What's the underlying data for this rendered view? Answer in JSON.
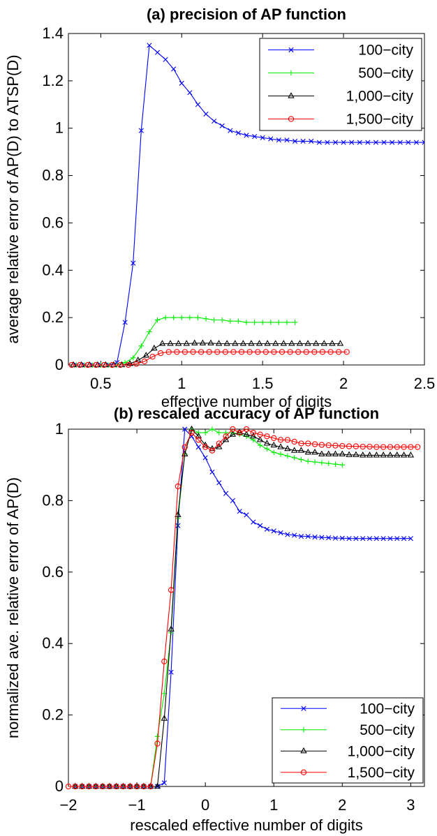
{
  "chart_data": [
    {
      "type": "line",
      "title": "(a) precision of AP function",
      "xlabel": "effective number of digits",
      "ylabel": "average relative error of AP(D) to ATSP(D)",
      "xlim": [
        0.3,
        2.5
      ],
      "ylim": [
        0,
        1.4
      ],
      "xticks": [
        0.5,
        1,
        1.5,
        2,
        2.5
      ],
      "xtick_labels": [
        "0.5",
        "1",
        "1.5",
        "2",
        "2.5"
      ],
      "yticks": [
        0,
        0.2,
        0.4,
        0.6,
        0.8,
        1,
        1.2,
        1.4
      ],
      "ytick_labels": [
        "0",
        "0.2",
        "0.4",
        "0.6",
        "0.8",
        "1",
        "1.2",
        "1.4"
      ],
      "grid": false,
      "legend_position": "top-right",
      "series": [
        {
          "name": "100−city",
          "color": "#0000ff",
          "marker": "x",
          "x": [
            0.35,
            0.4,
            0.45,
            0.5,
            0.55,
            0.6,
            0.65,
            0.7,
            0.75,
            0.8,
            0.85,
            0.9,
            0.95,
            1.0,
            1.05,
            1.1,
            1.15,
            1.2,
            1.25,
            1.3,
            1.35,
            1.4,
            1.45,
            1.5,
            1.55,
            1.6,
            1.65,
            1.7,
            1.75,
            1.8,
            1.85,
            1.9,
            1.95,
            2.0,
            2.05,
            2.1,
            2.15,
            2.2,
            2.25,
            2.3,
            2.35,
            2.4,
            2.45,
            2.5
          ],
          "y": [
            0,
            0,
            0,
            0,
            0,
            0.01,
            0.18,
            0.43,
            0.99,
            1.35,
            1.32,
            1.29,
            1.25,
            1.19,
            1.15,
            1.1,
            1.06,
            1.03,
            1.01,
            0.99,
            0.98,
            0.97,
            0.965,
            0.96,
            0.955,
            0.95,
            0.95,
            0.945,
            0.945,
            0.945,
            0.94,
            0.94,
            0.94,
            0.94,
            0.94,
            0.94,
            0.94,
            0.94,
            0.94,
            0.94,
            0.94,
            0.94,
            0.94,
            0.94
          ]
        },
        {
          "name": "500−city",
          "color": "#00ee00",
          "marker": "+",
          "x": [
            0.35,
            0.4,
            0.45,
            0.5,
            0.55,
            0.6,
            0.65,
            0.7,
            0.75,
            0.8,
            0.85,
            0.9,
            0.95,
            1.0,
            1.05,
            1.1,
            1.15,
            1.2,
            1.25,
            1.3,
            1.35,
            1.4,
            1.45,
            1.5,
            1.55,
            1.6,
            1.65,
            1.7
          ],
          "y": [
            0,
            0,
            0,
            0,
            0,
            0,
            0.01,
            0.03,
            0.08,
            0.14,
            0.19,
            0.2,
            0.2,
            0.2,
            0.2,
            0.2,
            0.195,
            0.19,
            0.19,
            0.185,
            0.185,
            0.18,
            0.18,
            0.18,
            0.18,
            0.18,
            0.18,
            0.18
          ]
        },
        {
          "name": "1,000−city",
          "color": "#000000",
          "marker": "triangle",
          "x": [
            0.33,
            0.38,
            0.43,
            0.48,
            0.53,
            0.58,
            0.63,
            0.68,
            0.73,
            0.78,
            0.83,
            0.88,
            0.93,
            0.98,
            1.03,
            1.08,
            1.13,
            1.18,
            1.23,
            1.28,
            1.33,
            1.38,
            1.43,
            1.48,
            1.53,
            1.58,
            1.63,
            1.68,
            1.73,
            1.78,
            1.83,
            1.88,
            1.93,
            1.98
          ],
          "y": [
            0,
            0,
            0,
            0,
            0,
            0,
            0,
            0.005,
            0.02,
            0.04,
            0.07,
            0.09,
            0.09,
            0.09,
            0.09,
            0.092,
            0.092,
            0.092,
            0.09,
            0.09,
            0.09,
            0.09,
            0.09,
            0.09,
            0.09,
            0.09,
            0.09,
            0.09,
            0.09,
            0.09,
            0.09,
            0.09,
            0.09,
            0.09
          ]
        },
        {
          "name": "1,500−city",
          "color": "#ff0000",
          "marker": "o",
          "x": [
            0.32,
            0.37,
            0.42,
            0.47,
            0.52,
            0.57,
            0.62,
            0.67,
            0.72,
            0.77,
            0.82,
            0.87,
            0.92,
            0.97,
            1.02,
            1.07,
            1.12,
            1.17,
            1.22,
            1.27,
            1.32,
            1.37,
            1.42,
            1.47,
            1.52,
            1.57,
            1.62,
            1.67,
            1.72,
            1.77,
            1.82,
            1.87,
            1.92,
            1.97,
            2.02
          ],
          "y": [
            0,
            0,
            0,
            0,
            0,
            0,
            0,
            0,
            0.005,
            0.015,
            0.035,
            0.05,
            0.055,
            0.055,
            0.055,
            0.055,
            0.055,
            0.055,
            0.055,
            0.055,
            0.055,
            0.055,
            0.055,
            0.055,
            0.055,
            0.055,
            0.055,
            0.055,
            0.055,
            0.055,
            0.055,
            0.055,
            0.055,
            0.055,
            0.055
          ]
        }
      ]
    },
    {
      "type": "line",
      "title": "(b) rescaled accuracy of AP function",
      "xlabel": "rescaled effective number of digits",
      "ylabel": "normalized ave. relative error of AP(D)",
      "xlim": [
        -2,
        3.2
      ],
      "ylim": [
        0,
        1
      ],
      "xticks": [
        -2,
        -1,
        0,
        1,
        2,
        3
      ],
      "xtick_labels": [
        "−2",
        "−1",
        "0",
        "1",
        "2",
        "3"
      ],
      "yticks": [
        0,
        0.2,
        0.4,
        0.6,
        0.8,
        1
      ],
      "ytick_labels": [
        "0",
        "0.2",
        "0.4",
        "0.6",
        "0.8",
        "1"
      ],
      "grid": false,
      "legend_position": "bottom-right",
      "series": [
        {
          "name": "100−city",
          "color": "#0000ff",
          "marker": "x",
          "x": [
            -1.9,
            -1.8,
            -1.7,
            -1.6,
            -1.5,
            -1.4,
            -1.3,
            -1.2,
            -1.1,
            -1.0,
            -0.9,
            -0.8,
            -0.7,
            -0.6,
            -0.5,
            -0.4,
            -0.3,
            -0.2,
            -0.1,
            0.0,
            0.1,
            0.2,
            0.3,
            0.4,
            0.5,
            0.6,
            0.7,
            0.8,
            0.9,
            1.0,
            1.1,
            1.2,
            1.3,
            1.4,
            1.5,
            1.6,
            1.7,
            1.8,
            1.9,
            2.0,
            2.1,
            2.2,
            2.3,
            2.4,
            2.5,
            2.6,
            2.7,
            2.8,
            2.9,
            3.0
          ],
          "y": [
            0,
            0,
            0,
            0,
            0,
            0,
            0,
            0,
            0,
            0,
            0,
            0,
            0,
            0.01,
            0.32,
            0.73,
            1.0,
            0.98,
            0.95,
            0.92,
            0.88,
            0.85,
            0.82,
            0.8,
            0.77,
            0.76,
            0.74,
            0.73,
            0.72,
            0.715,
            0.71,
            0.705,
            0.703,
            0.7,
            0.7,
            0.698,
            0.697,
            0.696,
            0.695,
            0.695,
            0.694,
            0.694,
            0.694,
            0.694,
            0.694,
            0.694,
            0.694,
            0.694,
            0.694,
            0.694
          ]
        },
        {
          "name": "500−city",
          "color": "#00ee00",
          "marker": "+",
          "x": [
            -1.9,
            -1.8,
            -1.7,
            -1.6,
            -1.5,
            -1.4,
            -1.3,
            -1.2,
            -1.1,
            -1.0,
            -0.9,
            -0.8,
            -0.7,
            -0.6,
            -0.5,
            -0.4,
            -0.3,
            -0.2,
            -0.1,
            0.0,
            0.1,
            0.2,
            0.3,
            0.4,
            0.5,
            0.6,
            0.7,
            0.8,
            0.9,
            1.0,
            1.1,
            1.2,
            1.3,
            1.4,
            1.5,
            1.6,
            1.7,
            1.8,
            1.9,
            2.0
          ],
          "y": [
            0,
            0,
            0,
            0,
            0,
            0,
            0,
            0,
            0,
            0,
            0,
            0,
            0.14,
            0.26,
            0.43,
            0.75,
            0.93,
            1.0,
            0.99,
            0.99,
            1.0,
            0.99,
            0.99,
            0.99,
            0.985,
            0.98,
            0.97,
            0.955,
            0.945,
            0.935,
            0.93,
            0.925,
            0.92,
            0.915,
            0.91,
            0.908,
            0.906,
            0.904,
            0.902,
            0.9
          ]
        },
        {
          "name": "1,000−city",
          "color": "#000000",
          "marker": "triangle",
          "x": [
            -1.9,
            -1.8,
            -1.7,
            -1.6,
            -1.5,
            -1.4,
            -1.3,
            -1.2,
            -1.1,
            -1.0,
            -0.9,
            -0.8,
            -0.7,
            -0.6,
            -0.5,
            -0.4,
            -0.3,
            -0.2,
            -0.1,
            0.0,
            0.1,
            0.2,
            0.3,
            0.4,
            0.5,
            0.6,
            0.7,
            0.8,
            0.9,
            1.0,
            1.1,
            1.2,
            1.3,
            1.4,
            1.5,
            1.6,
            1.7,
            1.8,
            1.9,
            2.0,
            2.1,
            2.2,
            2.3,
            2.4,
            2.5,
            2.6,
            2.7,
            2.8,
            2.9,
            3.0
          ],
          "y": [
            0,
            0,
            0,
            0,
            0,
            0,
            0,
            0,
            0,
            0,
            0,
            0,
            0,
            0.19,
            0.44,
            0.76,
            0.93,
            1.0,
            0.98,
            0.955,
            0.945,
            0.95,
            0.97,
            0.985,
            0.99,
            0.985,
            0.98,
            0.97,
            0.96,
            0.955,
            0.95,
            0.945,
            0.94,
            0.94,
            0.935,
            0.935,
            0.93,
            0.93,
            0.93,
            0.93,
            0.928,
            0.928,
            0.927,
            0.927,
            0.927,
            0.927,
            0.927,
            0.927,
            0.927,
            0.927
          ]
        },
        {
          "name": "1,500−city",
          "color": "#ff0000",
          "marker": "o",
          "x": [
            -2.0,
            -1.9,
            -1.8,
            -1.7,
            -1.6,
            -1.5,
            -1.4,
            -1.3,
            -1.2,
            -1.1,
            -1.0,
            -0.9,
            -0.8,
            -0.7,
            -0.6,
            -0.5,
            -0.4,
            -0.3,
            -0.2,
            -0.1,
            0.0,
            0.1,
            0.2,
            0.3,
            0.4,
            0.5,
            0.6,
            0.7,
            0.8,
            0.9,
            1.0,
            1.1,
            1.2,
            1.3,
            1.4,
            1.5,
            1.6,
            1.7,
            1.8,
            1.9,
            2.0,
            2.1,
            2.2,
            2.3,
            2.4,
            2.5,
            2.6,
            2.7,
            2.8,
            2.9,
            3.0,
            3.1
          ],
          "y": [
            0,
            0,
            0,
            0,
            0,
            0,
            0,
            0,
            0,
            0,
            0,
            0,
            0,
            0.12,
            0.35,
            0.55,
            0.84,
            0.95,
            0.99,
            0.97,
            0.95,
            0.94,
            0.96,
            0.98,
            1.0,
            0.99,
            1.0,
            0.99,
            0.985,
            0.98,
            0.975,
            0.97,
            0.97,
            0.965,
            0.96,
            0.96,
            0.958,
            0.956,
            0.955,
            0.954,
            0.953,
            0.952,
            0.952,
            0.951,
            0.951,
            0.95,
            0.95,
            0.95,
            0.95,
            0.95,
            0.95,
            0.95
          ]
        }
      ]
    }
  ]
}
